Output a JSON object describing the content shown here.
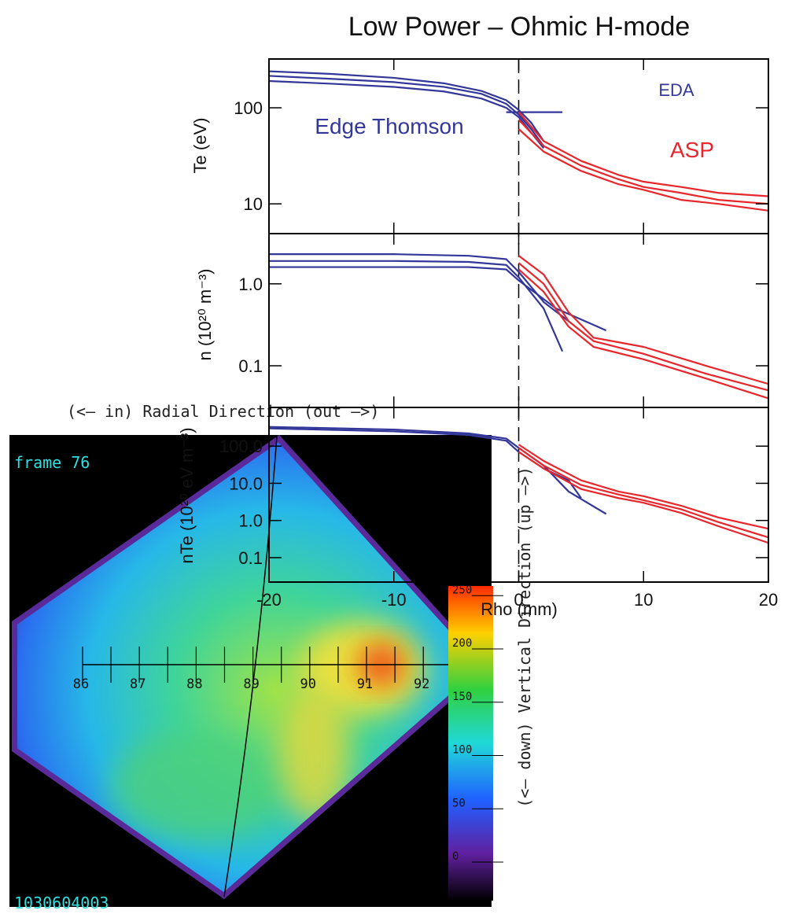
{
  "chart_data": [
    {
      "type": "line",
      "title": "Low Power – Ohmic H-mode",
      "ylabel": "Te (eV)",
      "log_y": true,
      "xlim": [
        -20,
        20
      ],
      "ylim": [
        4.9,
        322
      ],
      "yticks": [
        10,
        100
      ],
      "annotations": [
        {
          "text": "Edge Thomson",
          "color": "#33379a"
        },
        {
          "text": "EDA",
          "color": "#33379a"
        },
        {
          "text": "ASP",
          "color": "#e8262b"
        }
      ],
      "series": [
        {
          "color": "#33379a",
          "x": [
            -20,
            -15,
            -10,
            -6,
            -3,
            -1,
            0,
            1,
            2
          ],
          "values": [
            240,
            225,
            205,
            180,
            150,
            120,
            95,
            70,
            45
          ]
        },
        {
          "color": "#33379a",
          "x": [
            -20,
            -15,
            -10,
            -6,
            -3,
            -1,
            0,
            1,
            2
          ],
          "values": [
            215,
            200,
            185,
            165,
            140,
            110,
            85,
            60,
            40
          ]
        },
        {
          "color": "#33379a",
          "x": [
            -20,
            -15,
            -10,
            -6,
            -3,
            -1,
            0,
            1,
            2
          ],
          "values": [
            190,
            178,
            165,
            148,
            125,
            100,
            80,
            55,
            38
          ]
        },
        {
          "color": "#33379a",
          "x": [
            -1,
            3.5
          ],
          "values": [
            90,
            90
          ]
        },
        {
          "color": "#e8262b",
          "x": [
            0,
            2,
            5,
            8,
            10,
            13,
            16,
            20
          ],
          "values": [
            90,
            45,
            28,
            20,
            17,
            15,
            13,
            12
          ]
        },
        {
          "color": "#e8262b",
          "x": [
            0,
            2,
            5,
            8,
            10,
            13,
            16,
            20
          ],
          "values": [
            75,
            40,
            25,
            18,
            15,
            13,
            11,
            10
          ]
        },
        {
          "color": "#e8262b",
          "x": [
            0,
            2,
            5,
            8,
            10,
            13,
            16,
            20
          ],
          "values": [
            60,
            35,
            22,
            16,
            14,
            11,
            10,
            8.5
          ]
        }
      ]
    },
    {
      "type": "line",
      "ylabel": "n (10²⁰ m⁻³)",
      "log_y": true,
      "xlim": [
        -20,
        20
      ],
      "ylim": [
        0.031,
        4.1
      ],
      "yticks": [
        {
          "value": 0.1,
          "label": "0.1"
        },
        {
          "value": 1,
          "label": "1.0"
        }
      ],
      "series": [
        {
          "color": "#33379a",
          "x": [
            -20,
            -10,
            -4,
            -1,
            0,
            2,
            4
          ],
          "values": [
            2.3,
            2.3,
            2.2,
            2.0,
            1.4,
            0.6,
            0.35
          ]
        },
        {
          "color": "#33379a",
          "x": [
            -20,
            -10,
            -4,
            -1,
            0,
            2,
            3.5
          ],
          "values": [
            1.9,
            1.9,
            1.85,
            1.7,
            1.2,
            0.5,
            0.15
          ]
        },
        {
          "color": "#33379a",
          "x": [
            -20,
            -10,
            -4,
            -1,
            0,
            3,
            7
          ],
          "values": [
            1.6,
            1.6,
            1.6,
            1.5,
            1.1,
            0.5,
            0.27
          ]
        },
        {
          "color": "#e8262b",
          "x": [
            0,
            2,
            4,
            6,
            10,
            15,
            20
          ],
          "values": [
            2.2,
            1.3,
            0.45,
            0.22,
            0.17,
            0.1,
            0.06
          ]
        },
        {
          "color": "#e8262b",
          "x": [
            0,
            2,
            4,
            6,
            10,
            15,
            20
          ],
          "values": [
            1.8,
            1.0,
            0.35,
            0.2,
            0.14,
            0.08,
            0.05
          ]
        },
        {
          "color": "#e8262b",
          "x": [
            0,
            2,
            4,
            6,
            10,
            15,
            20
          ],
          "values": [
            1.5,
            0.8,
            0.3,
            0.17,
            0.12,
            0.07,
            0.04
          ]
        }
      ]
    },
    {
      "type": "line",
      "ylabel": "nTe (10²⁰ eV m⁻³)",
      "xlabel": "Rho (mm)",
      "log_y": true,
      "xlim": [
        -20,
        20
      ],
      "xticks": [
        -20,
        -10,
        0,
        10,
        20
      ],
      "ylim": [
        0.022,
        1100
      ],
      "yticks": [
        {
          "value": 0.1,
          "label": "0.1"
        },
        {
          "value": 1,
          "label": "1.0"
        },
        {
          "value": 10,
          "label": "10.0"
        },
        {
          "value": 100,
          "label": "100.0"
        }
      ],
      "series": [
        {
          "color": "#33379a",
          "x": [
            -20,
            -10,
            -4,
            -1,
            0,
            2,
            4,
            7
          ],
          "values": [
            330,
            280,
            220,
            160,
            90,
            30,
            6,
            1.5
          ]
        },
        {
          "color": "#33379a",
          "x": [
            -20,
            -10,
            -4,
            -1,
            0,
            2,
            4,
            5
          ],
          "values": [
            300,
            250,
            200,
            140,
            70,
            25,
            12,
            4
          ]
        },
        {
          "color": "#e8262b",
          "x": [
            0,
            2,
            5,
            8,
            10,
            13,
            16,
            20
          ],
          "values": [
            110,
            40,
            12,
            6,
            4.5,
            2.5,
            1.2,
            0.6
          ]
        },
        {
          "color": "#e8262b",
          "x": [
            0,
            2,
            5,
            8,
            10,
            13,
            16,
            20
          ],
          "values": [
            90,
            30,
            9,
            5,
            3.5,
            2,
            0.9,
            0.35
          ]
        },
        {
          "color": "#e8262b",
          "x": [
            0,
            2,
            5,
            8,
            10,
            13,
            16,
            20
          ],
          "values": [
            70,
            25,
            7,
            4,
            3,
            1.6,
            0.7,
            0.25
          ]
        }
      ]
    }
  ],
  "image": {
    "frame_label": "frame 76",
    "shot": "1030604003",
    "x_direction": "(<– in) Radial Direction (out –>)",
    "y_direction": "(<– down) Vertical Direction (up –>)",
    "ruler_labels": [
      86,
      87,
      88,
      89,
      90,
      91,
      92
    ],
    "colorbar_labels": [
      250,
      200,
      150,
      100,
      50,
      0
    ]
  }
}
